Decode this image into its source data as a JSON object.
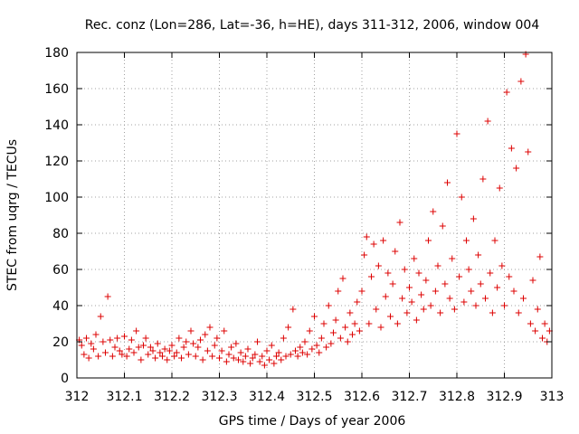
{
  "chart_data": {
    "type": "scatter",
    "title": "Rec. conz (Lon=286, Lat=-36, h=HE), days 311-312, 2006, window 004",
    "xlabel": "GPS time / Days of year 2006",
    "ylabel": "STEC from uqrg / TECUs",
    "xlim": [
      312,
      313
    ],
    "ylim": [
      0,
      180
    ],
    "xticks": [
      312,
      312.1,
      312.2,
      312.3,
      312.4,
      312.5,
      312.6,
      312.7,
      312.8,
      312.9,
      313
    ],
    "xtick_labels": [
      "312",
      "312.1",
      "312.2",
      "312.3",
      "312.4",
      "312.5",
      "312.6",
      "312.7",
      "312.8",
      "312.9",
      "313"
    ],
    "yticks": [
      0,
      20,
      40,
      60,
      80,
      100,
      120,
      140,
      160,
      180
    ],
    "ytick_labels": [
      "0",
      "20",
      "40",
      "60",
      "80",
      "100",
      "120",
      "140",
      "160",
      "180"
    ],
    "grid": true,
    "marker": "plus",
    "color": "#dd0000",
    "series": [
      {
        "name": "STEC",
        "points": [
          [
            312.005,
            21
          ],
          [
            312.01,
            18
          ],
          [
            312.015,
            13
          ],
          [
            312.02,
            22
          ],
          [
            312.025,
            11
          ],
          [
            312.03,
            19
          ],
          [
            312.035,
            16
          ],
          [
            312.04,
            24
          ],
          [
            312.045,
            12
          ],
          [
            312.05,
            34
          ],
          [
            312.055,
            20
          ],
          [
            312.06,
            14
          ],
          [
            312.065,
            45
          ],
          [
            312.07,
            21
          ],
          [
            312.075,
            12
          ],
          [
            312.08,
            17
          ],
          [
            312.085,
            22
          ],
          [
            312.09,
            15
          ],
          [
            312.095,
            13
          ],
          [
            312.1,
            23
          ],
          [
            312.105,
            12
          ],
          [
            312.11,
            16
          ],
          [
            312.115,
            21
          ],
          [
            312.12,
            14
          ],
          [
            312.125,
            26
          ],
          [
            312.13,
            17
          ],
          [
            312.135,
            10
          ],
          [
            312.14,
            18
          ],
          [
            312.145,
            22
          ],
          [
            312.15,
            13
          ],
          [
            312.155,
            17
          ],
          [
            312.16,
            15
          ],
          [
            312.165,
            11
          ],
          [
            312.17,
            19
          ],
          [
            312.175,
            14
          ],
          [
            312.18,
            12
          ],
          [
            312.185,
            16
          ],
          [
            312.19,
            10
          ],
          [
            312.195,
            15
          ],
          [
            312.2,
            18
          ],
          [
            312.205,
            12
          ],
          [
            312.21,
            14
          ],
          [
            312.215,
            22
          ],
          [
            312.22,
            11
          ],
          [
            312.225,
            17
          ],
          [
            312.23,
            20
          ],
          [
            312.235,
            13
          ],
          [
            312.24,
            26
          ],
          [
            312.245,
            19
          ],
          [
            312.25,
            12
          ],
          [
            312.255,
            17
          ],
          [
            312.26,
            21
          ],
          [
            312.265,
            10
          ],
          [
            312.27,
            24
          ],
          [
            312.275,
            15
          ],
          [
            312.28,
            28
          ],
          [
            312.285,
            12
          ],
          [
            312.29,
            18
          ],
          [
            312.295,
            22
          ],
          [
            312.3,
            11
          ],
          [
            312.305,
            15
          ],
          [
            312.31,
            26
          ],
          [
            312.315,
            9
          ],
          [
            312.32,
            13
          ],
          [
            312.325,
            17
          ],
          [
            312.33,
            11
          ],
          [
            312.335,
            19
          ],
          [
            312.34,
            10
          ],
          [
            312.345,
            14
          ],
          [
            312.35,
            9
          ],
          [
            312.355,
            12
          ],
          [
            312.36,
            16
          ],
          [
            312.365,
            8
          ],
          [
            312.37,
            11
          ],
          [
            312.375,
            13
          ],
          [
            312.38,
            20
          ],
          [
            312.385,
            9
          ],
          [
            312.39,
            12
          ],
          [
            312.395,
            7
          ],
          [
            312.4,
            15
          ],
          [
            312.405,
            10
          ],
          [
            312.41,
            18
          ],
          [
            312.415,
            8
          ],
          [
            312.42,
            12
          ],
          [
            312.425,
            14
          ],
          [
            312.43,
            10
          ],
          [
            312.435,
            22
          ],
          [
            312.44,
            12
          ],
          [
            312.445,
            28
          ],
          [
            312.45,
            13
          ],
          [
            312.455,
            38
          ],
          [
            312.46,
            15
          ],
          [
            312.465,
            12
          ],
          [
            312.47,
            17
          ],
          [
            312.475,
            14
          ],
          [
            312.48,
            20
          ],
          [
            312.485,
            13
          ],
          [
            312.49,
            26
          ],
          [
            312.495,
            16
          ],
          [
            312.5,
            34
          ],
          [
            312.505,
            18
          ],
          [
            312.51,
            14
          ],
          [
            312.515,
            22
          ],
          [
            312.52,
            30
          ],
          [
            312.525,
            17
          ],
          [
            312.53,
            40
          ],
          [
            312.535,
            19
          ],
          [
            312.54,
            25
          ],
          [
            312.545,
            32
          ],
          [
            312.55,
            48
          ],
          [
            312.555,
            22
          ],
          [
            312.56,
            55
          ],
          [
            312.565,
            28
          ],
          [
            312.57,
            20
          ],
          [
            312.575,
            36
          ],
          [
            312.58,
            24
          ],
          [
            312.585,
            30
          ],
          [
            312.59,
            42
          ],
          [
            312.595,
            26
          ],
          [
            312.6,
            48
          ],
          [
            312.605,
            68
          ],
          [
            312.61,
            78
          ],
          [
            312.615,
            30
          ],
          [
            312.62,
            56
          ],
          [
            312.625,
            74
          ],
          [
            312.63,
            38
          ],
          [
            312.635,
            62
          ],
          [
            312.64,
            28
          ],
          [
            312.645,
            76
          ],
          [
            312.65,
            45
          ],
          [
            312.655,
            58
          ],
          [
            312.66,
            34
          ],
          [
            312.665,
            52
          ],
          [
            312.67,
            70
          ],
          [
            312.675,
            30
          ],
          [
            312.68,
            86
          ],
          [
            312.685,
            44
          ],
          [
            312.69,
            60
          ],
          [
            312.695,
            36
          ],
          [
            312.7,
            50
          ],
          [
            312.705,
            42
          ],
          [
            312.71,
            66
          ],
          [
            312.715,
            32
          ],
          [
            312.72,
            58
          ],
          [
            312.725,
            46
          ],
          [
            312.73,
            38
          ],
          [
            312.735,
            54
          ],
          [
            312.74,
            76
          ],
          [
            312.745,
            40
          ],
          [
            312.75,
            92
          ],
          [
            312.755,
            48
          ],
          [
            312.76,
            62
          ],
          [
            312.765,
            36
          ],
          [
            312.77,
            84
          ],
          [
            312.775,
            52
          ],
          [
            312.78,
            108
          ],
          [
            312.785,
            44
          ],
          [
            312.79,
            66
          ],
          [
            312.795,
            38
          ],
          [
            312.8,
            135
          ],
          [
            312.805,
            56
          ],
          [
            312.81,
            100
          ],
          [
            312.815,
            42
          ],
          [
            312.82,
            76
          ],
          [
            312.825,
            60
          ],
          [
            312.83,
            48
          ],
          [
            312.835,
            88
          ],
          [
            312.84,
            40
          ],
          [
            312.845,
            68
          ],
          [
            312.85,
            52
          ],
          [
            312.855,
            110
          ],
          [
            312.86,
            44
          ],
          [
            312.865,
            142
          ],
          [
            312.87,
            58
          ],
          [
            312.875,
            36
          ],
          [
            312.88,
            76
          ],
          [
            312.885,
            50
          ],
          [
            312.89,
            105
          ],
          [
            312.895,
            62
          ],
          [
            312.9,
            40
          ],
          [
            312.905,
            158
          ],
          [
            312.91,
            56
          ],
          [
            312.915,
            127
          ],
          [
            312.92,
            48
          ],
          [
            312.925,
            116
          ],
          [
            312.93,
            36
          ],
          [
            312.935,
            164
          ],
          [
            312.94,
            44
          ],
          [
            312.945,
            179
          ],
          [
            312.95,
            125
          ],
          [
            312.955,
            30
          ],
          [
            312.96,
            54
          ],
          [
            312.965,
            26
          ],
          [
            312.97,
            38
          ],
          [
            312.975,
            67
          ],
          [
            312.98,
            22
          ],
          [
            312.985,
            30
          ],
          [
            312.99,
            20
          ],
          [
            312.995,
            26
          ]
        ]
      }
    ]
  }
}
